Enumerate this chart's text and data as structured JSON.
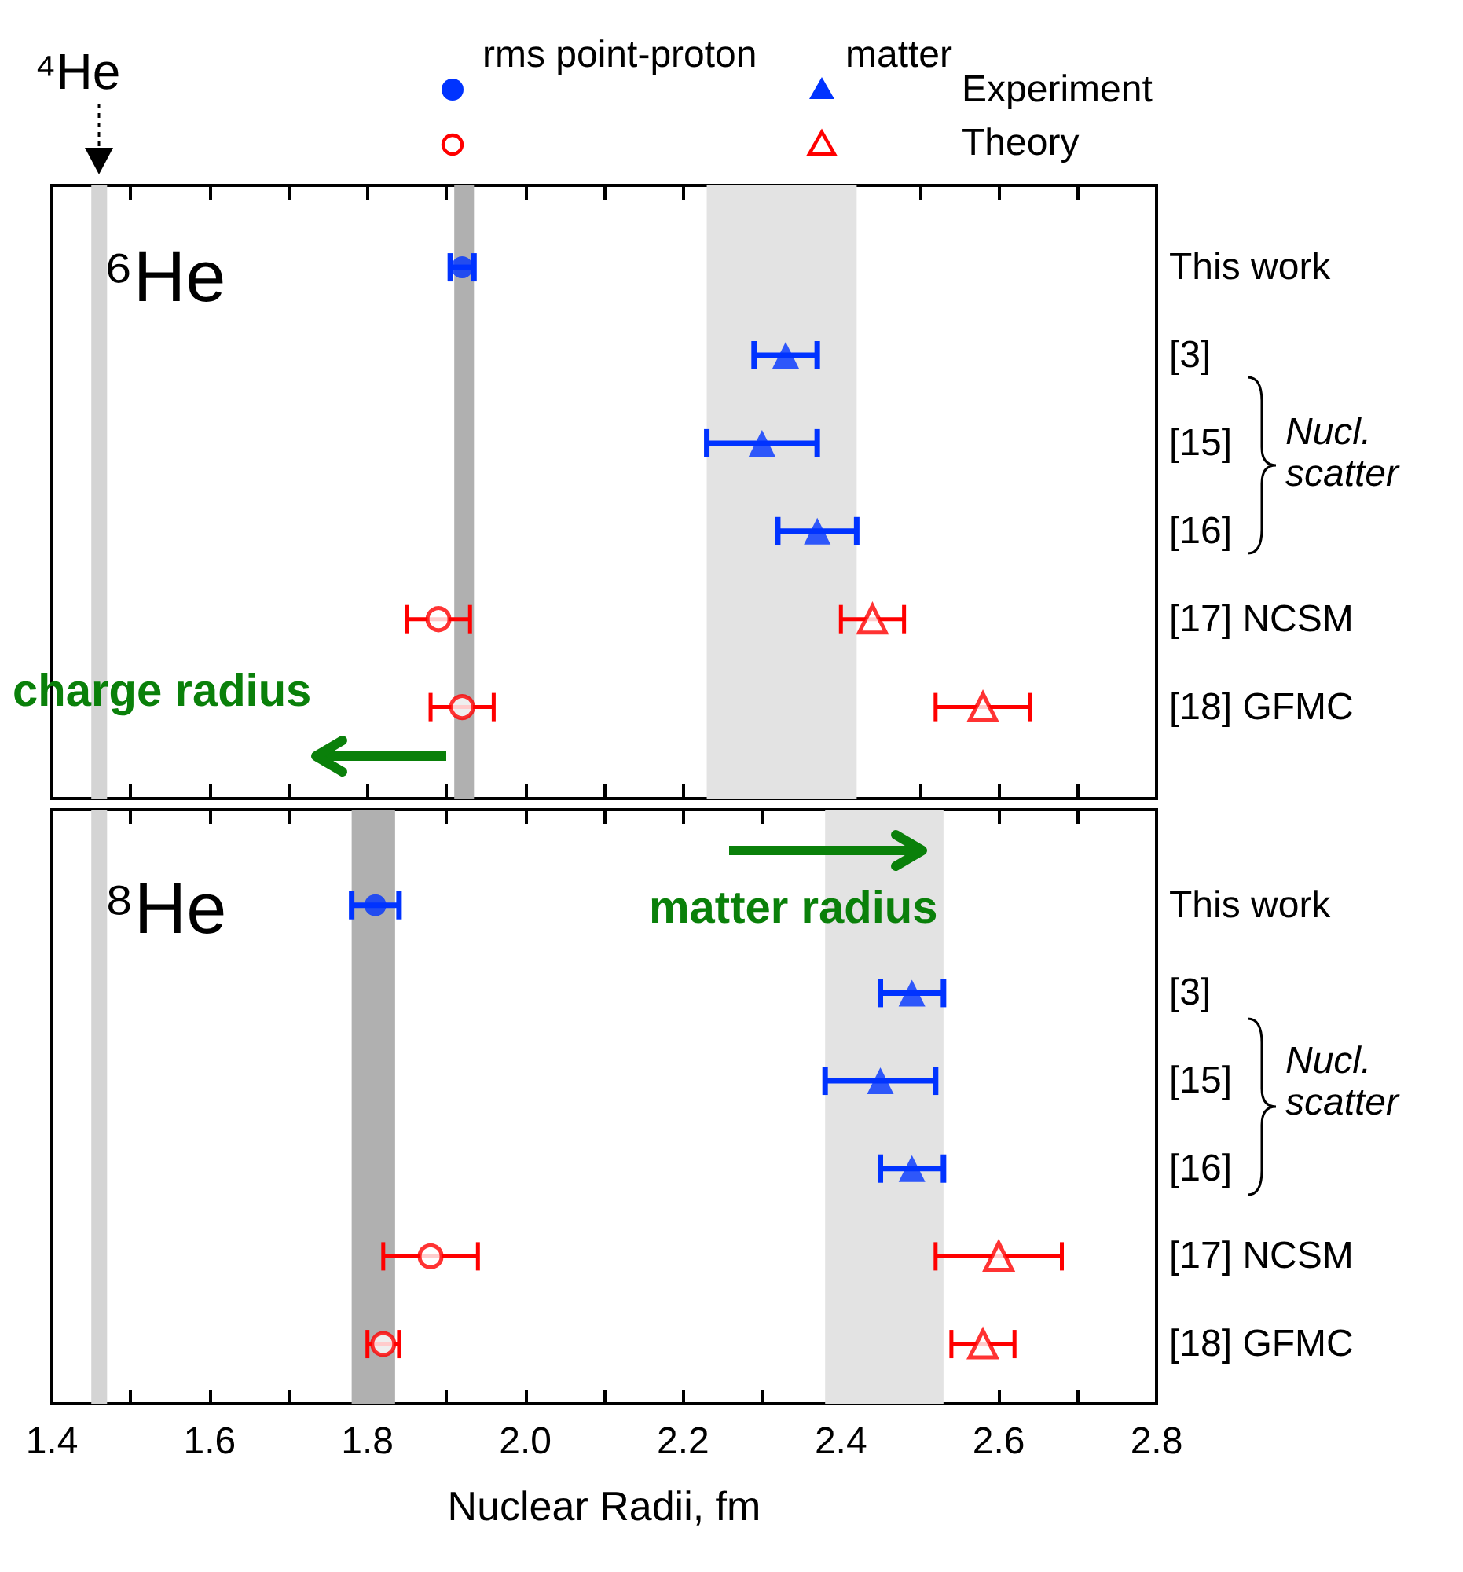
{
  "chart_data": [
    {
      "type": "scatter",
      "orientation": "horizontal",
      "categories": [
        "This work",
        "[3]",
        "[15]",
        "[16]",
        "[17] NCSM",
        "[18] GFMC"
      ],
      "series": [
        {
          "color": "#0033ff",
          "marker": "circle",
          "values": [
            1.92,
            null,
            null,
            null,
            null,
            null
          ],
          "errors": [
            0.015,
            null,
            null,
            null,
            null,
            null
          ]
        },
        {
          "color": "#0033ff",
          "marker": "triangle",
          "values": [
            null,
            2.33,
            2.3,
            2.37,
            null,
            null
          ],
          "errors": [
            null,
            0.04,
            0.07,
            0.05,
            null,
            null
          ]
        },
        {
          "color": "#ff0000",
          "marker": "circle",
          "values": [
            null,
            null,
            null,
            null,
            1.89,
            1.92
          ],
          "errors": [
            null,
            null,
            null,
            null,
            0.04,
            0.04
          ]
        },
        {
          "color": "#ff0000",
          "marker": "triangle",
          "values": [
            null,
            null,
            null,
            null,
            2.44,
            2.58
          ],
          "errors": [
            null,
            null,
            null,
            null,
            0.04,
            0.06
          ]
        }
      ],
      "bands": [
        {
          "axis": "x",
          "from": 1.45,
          "to": 1.47,
          "color": "#d4d4d4"
        },
        {
          "axis": "x",
          "from": 1.91,
          "to": 1.935,
          "color": "#b0b0b0"
        },
        {
          "axis": "x",
          "from": 2.23,
          "to": 2.42,
          "color": "#e3e3e3"
        }
      ],
      "xlim": [
        1.4,
        2.8
      ],
      "xticks": [
        1.4,
        {
          "value": 1.5,
          "label": null
        },
        1.6,
        {
          "value": 1.7,
          "label": null
        },
        1.8,
        {
          "value": 1.9,
          "label": null
        },
        2,
        {
          "value": 2.1,
          "label": null
        },
        2.2,
        {
          "value": 2.3,
          "label": null
        },
        2.4,
        {
          "value": 2.5,
          "label": null
        },
        2.6,
        {
          "value": 2.7,
          "label": null
        },
        2.8
      ],
      "tick_labels": "y",
      "annotations": [
        "⁶He",
        "Nucl. scatter",
        "charge radius",
        "rms point-proton",
        "matter",
        "Experiment",
        "Theory",
        "⁴He"
      ]
    },
    {
      "type": "scatter",
      "orientation": "horizontal",
      "categories": [
        "This work",
        "[3]",
        "[15]",
        "[16]",
        "[17] NCSM",
        "[18] GFMC"
      ],
      "series": [
        {
          "color": "#0033ff",
          "marker": "circle",
          "values": [
            1.81,
            null,
            null,
            null,
            null,
            null
          ],
          "errors": [
            0.03,
            null,
            null,
            null,
            null,
            null
          ]
        },
        {
          "color": "#0033ff",
          "marker": "triangle",
          "values": [
            null,
            2.49,
            2.45,
            2.49,
            null,
            null
          ],
          "errors": [
            null,
            0.04,
            0.07,
            0.04,
            null,
            null
          ]
        },
        {
          "color": "#ff0000",
          "marker": "circle",
          "values": [
            null,
            null,
            null,
            null,
            1.88,
            1.82
          ],
          "errors": [
            null,
            null,
            null,
            null,
            0.06,
            0.02
          ]
        },
        {
          "color": "#ff0000",
          "marker": "triangle",
          "values": [
            null,
            null,
            null,
            null,
            2.6,
            2.58
          ],
          "errors": [
            null,
            null,
            null,
            null,
            0.08,
            0.04
          ]
        }
      ],
      "bands": [
        {
          "axis": "x",
          "from": 1.45,
          "to": 1.47,
          "color": "#d4d4d4"
        },
        {
          "axis": "x",
          "from": 1.78,
          "to": 1.835,
          "color": "#b0b0b0"
        },
        {
          "axis": "x",
          "from": 2.38,
          "to": 2.53,
          "color": "#e3e3e3"
        }
      ],
      "xlim": [
        1.4,
        2.8
      ],
      "xticks": [
        1.4,
        {
          "value": 1.5,
          "label": null
        },
        1.6,
        {
          "value": 1.7,
          "label": null
        },
        1.8,
        {
          "value": 1.9,
          "label": null
        },
        {
          "value": 2,
          "label": "2.0"
        },
        {
          "value": 2.1,
          "label": null
        },
        2.2,
        {
          "value": 2.3,
          "label": null
        },
        2.4,
        {
          "value": 2.5,
          "label": null
        },
        2.6,
        {
          "value": 2.7,
          "label": null
        },
        2.8
      ],
      "xlabel": "Nuclear Radii, fm",
      "annotations": [
        "⁸He",
        "Nucl. scatter",
        "matter radius"
      ]
    }
  ]
}
